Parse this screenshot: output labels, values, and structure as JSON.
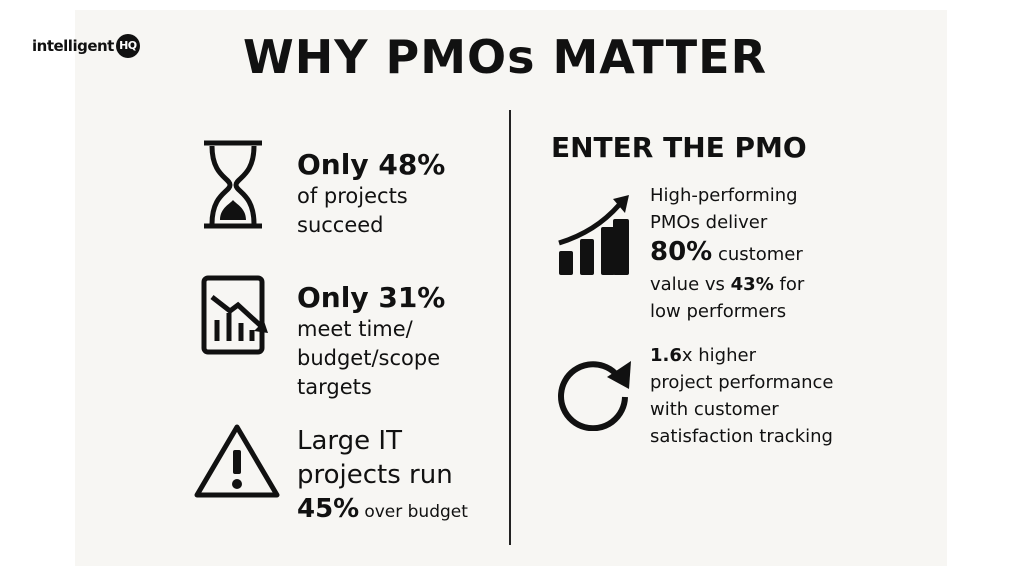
{
  "logo": {
    "text": "intelligent",
    "badge": "HQ"
  },
  "title": "WHY PMOs MATTER",
  "left_items": [
    {
      "headline": "Only 48%",
      "lines": [
        "of projects",
        "succeed"
      ]
    },
    {
      "headline": "Only 31%",
      "lines": [
        "meet time/",
        "budget/scope",
        "targets"
      ]
    },
    {
      "lines": [
        "Large IT",
        "projects run"
      ],
      "highlight": "45%",
      "tail": "over budget"
    }
  ],
  "right_heading": "ENTER THE PMO",
  "right_items": [
    {
      "lines": [
        "High-performing",
        "PMOs deliver"
      ],
      "highlight": "80%",
      "after_highlight": "customer",
      "line_start": "value vs",
      "highlight2": "43%",
      "after_highlight2": "for",
      "last_line": "low performers"
    },
    {
      "highlight": "1.6",
      "after_highlight": "x higher",
      "lines": [
        "project performance",
        "with customer",
        "satisfaction tracking"
      ]
    }
  ]
}
